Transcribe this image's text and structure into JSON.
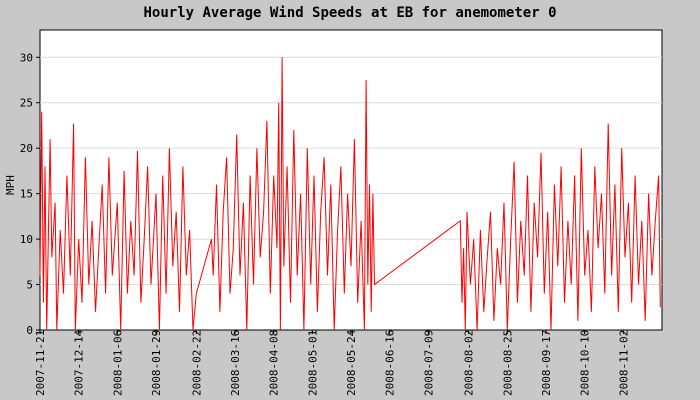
{
  "chart_data": {
    "type": "line",
    "title": "Hourly Average Wind Speeds at EB for anemometer 0",
    "xlabel": "",
    "ylabel": "MPH",
    "x_axis": {
      "kind": "date",
      "min": "2007-11-21",
      "max": "2008-11-25"
    },
    "ylim": [
      0,
      33
    ],
    "yticks": [
      0,
      5,
      10,
      15,
      20,
      25,
      30
    ],
    "xtick_labels": [
      "2007-11-21",
      "2007-12-14",
      "2008-01-06",
      "2008-01-29",
      "2008-02-22",
      "2008-03-16",
      "2008-04-08",
      "2008-05-01",
      "2008-05-24",
      "2008-06-16",
      "2008-07-09",
      "2008-08-02",
      "2008-08-25",
      "2008-09-17",
      "2008-10-10",
      "2008-11-02"
    ],
    "grid": {
      "horizontal": true,
      "vertical": false
    },
    "legend": "none",
    "series": [
      {
        "color": "#ff0000",
        "points": [
          [
            "2007-11-21",
            6
          ],
          [
            "2007-11-22",
            24
          ],
          [
            "2007-11-23",
            3
          ],
          [
            "2007-11-24",
            18
          ],
          [
            "2007-11-25",
            0
          ],
          [
            "2007-11-27",
            21
          ],
          [
            "2007-11-28",
            8
          ],
          [
            "2007-11-30",
            14
          ],
          [
            "2007-12-01",
            0
          ],
          [
            "2007-12-03",
            11
          ],
          [
            "2007-12-05",
            4
          ],
          [
            "2007-12-07",
            17
          ],
          [
            "2007-12-09",
            6
          ],
          [
            "2007-12-11",
            22.7
          ],
          [
            "2007-12-12",
            0
          ],
          [
            "2007-12-14",
            10
          ],
          [
            "2007-12-16",
            3
          ],
          [
            "2007-12-18",
            19
          ],
          [
            "2007-12-20",
            5
          ],
          [
            "2007-12-22",
            12
          ],
          [
            "2007-12-24",
            2
          ],
          [
            "2007-12-26",
            9
          ],
          [
            "2007-12-28",
            16
          ],
          [
            "2007-12-30",
            4
          ],
          [
            "2008-01-01",
            19
          ],
          [
            "2008-01-03",
            6
          ],
          [
            "2008-01-06",
            14
          ],
          [
            "2008-01-08",
            0
          ],
          [
            "2008-01-10",
            17.5
          ],
          [
            "2008-01-12",
            4
          ],
          [
            "2008-01-14",
            12
          ],
          [
            "2008-01-16",
            6
          ],
          [
            "2008-01-18",
            19.7
          ],
          [
            "2008-01-20",
            3
          ],
          [
            "2008-01-22",
            10
          ],
          [
            "2008-01-24",
            18
          ],
          [
            "2008-01-26",
            5
          ],
          [
            "2008-01-29",
            15
          ],
          [
            "2008-01-31",
            0
          ],
          [
            "2008-02-02",
            17
          ],
          [
            "2008-02-04",
            4
          ],
          [
            "2008-02-06",
            20
          ],
          [
            "2008-02-08",
            7
          ],
          [
            "2008-02-10",
            13
          ],
          [
            "2008-02-12",
            2
          ],
          [
            "2008-02-14",
            18
          ],
          [
            "2008-02-16",
            6
          ],
          [
            "2008-02-18",
            11
          ],
          [
            "2008-02-20",
            0
          ],
          [
            "2008-02-22",
            4
          ],
          [
            "2008-03-02",
            10
          ],
          [
            "2008-03-03",
            6
          ],
          [
            "2008-03-05",
            16
          ],
          [
            "2008-03-07",
            2
          ],
          [
            "2008-03-09",
            13
          ],
          [
            "2008-03-11",
            19
          ],
          [
            "2008-03-13",
            4
          ],
          [
            "2008-03-15",
            9
          ],
          [
            "2008-03-17",
            21.5
          ],
          [
            "2008-03-19",
            6
          ],
          [
            "2008-03-21",
            14
          ],
          [
            "2008-03-23",
            0
          ],
          [
            "2008-03-25",
            17
          ],
          [
            "2008-03-27",
            5
          ],
          [
            "2008-03-29",
            20
          ],
          [
            "2008-03-31",
            8
          ],
          [
            "2008-04-02",
            13
          ],
          [
            "2008-04-04",
            23
          ],
          [
            "2008-04-06",
            4
          ],
          [
            "2008-04-08",
            17
          ],
          [
            "2008-04-10",
            9
          ],
          [
            "2008-04-11",
            25
          ],
          [
            "2008-04-12",
            0
          ],
          [
            "2008-04-13",
            30
          ],
          [
            "2008-04-14",
            7
          ],
          [
            "2008-04-16",
            18
          ],
          [
            "2008-04-18",
            3
          ],
          [
            "2008-04-20",
            22
          ],
          [
            "2008-04-22",
            6
          ],
          [
            "2008-04-24",
            15
          ],
          [
            "2008-04-26",
            0
          ],
          [
            "2008-04-28",
            20
          ],
          [
            "2008-04-30",
            5
          ],
          [
            "2008-05-02",
            17
          ],
          [
            "2008-05-04",
            2
          ],
          [
            "2008-05-06",
            13
          ],
          [
            "2008-05-08",
            19
          ],
          [
            "2008-05-10",
            6
          ],
          [
            "2008-05-12",
            16
          ],
          [
            "2008-05-14",
            0
          ],
          [
            "2008-05-16",
            11
          ],
          [
            "2008-05-18",
            18
          ],
          [
            "2008-05-20",
            4
          ],
          [
            "2008-05-22",
            15
          ],
          [
            "2008-05-24",
            7
          ],
          [
            "2008-05-26",
            21
          ],
          [
            "2008-05-28",
            3
          ],
          [
            "2008-05-30",
            12
          ],
          [
            "2008-06-01",
            0
          ],
          [
            "2008-06-02",
            27.5
          ],
          [
            "2008-06-03",
            5
          ],
          [
            "2008-06-04",
            16
          ],
          [
            "2008-06-05",
            2
          ],
          [
            "2008-06-06",
            15
          ],
          [
            "2008-06-07",
            5
          ],
          [
            "2008-07-28",
            12
          ],
          [
            "2008-07-29",
            3
          ],
          [
            "2008-07-30",
            9
          ],
          [
            "2008-07-31",
            0
          ],
          [
            "2008-08-01",
            13
          ],
          [
            "2008-08-03",
            5
          ],
          [
            "2008-08-05",
            10
          ],
          [
            "2008-08-07",
            0
          ],
          [
            "2008-08-09",
            11
          ],
          [
            "2008-08-11",
            2
          ],
          [
            "2008-08-13",
            8
          ],
          [
            "2008-08-15",
            13
          ],
          [
            "2008-08-17",
            1
          ],
          [
            "2008-08-19",
            9
          ],
          [
            "2008-08-21",
            5
          ],
          [
            "2008-08-23",
            14
          ],
          [
            "2008-08-25",
            0
          ],
          [
            "2008-08-27",
            10
          ],
          [
            "2008-08-29",
            18.5
          ],
          [
            "2008-08-31",
            3
          ],
          [
            "2008-09-02",
            12
          ],
          [
            "2008-09-04",
            6
          ],
          [
            "2008-09-06",
            17
          ],
          [
            "2008-09-08",
            2
          ],
          [
            "2008-09-10",
            14
          ],
          [
            "2008-09-12",
            8
          ],
          [
            "2008-09-14",
            19.5
          ],
          [
            "2008-09-16",
            4
          ],
          [
            "2008-09-18",
            13
          ],
          [
            "2008-09-20",
            0
          ],
          [
            "2008-09-22",
            16
          ],
          [
            "2008-09-24",
            7
          ],
          [
            "2008-09-26",
            18
          ],
          [
            "2008-09-28",
            3
          ],
          [
            "2008-09-30",
            12
          ],
          [
            "2008-10-02",
            5
          ],
          [
            "2008-10-04",
            17
          ],
          [
            "2008-10-06",
            1
          ],
          [
            "2008-10-08",
            20
          ],
          [
            "2008-10-10",
            6
          ],
          [
            "2008-10-12",
            11
          ],
          [
            "2008-10-14",
            2
          ],
          [
            "2008-10-16",
            18
          ],
          [
            "2008-10-18",
            9
          ],
          [
            "2008-10-20",
            15
          ],
          [
            "2008-10-22",
            4
          ],
          [
            "2008-10-24",
            22.7
          ],
          [
            "2008-10-26",
            6
          ],
          [
            "2008-10-28",
            16
          ],
          [
            "2008-10-30",
            2
          ],
          [
            "2008-11-01",
            20
          ],
          [
            "2008-11-03",
            8
          ],
          [
            "2008-11-05",
            14
          ],
          [
            "2008-11-07",
            3
          ],
          [
            "2008-11-09",
            17
          ],
          [
            "2008-11-11",
            5
          ],
          [
            "2008-11-13",
            12
          ],
          [
            "2008-11-15",
            1
          ],
          [
            "2008-11-17",
            15
          ],
          [
            "2008-11-19",
            6
          ],
          [
            "2008-11-21",
            12
          ],
          [
            "2008-11-23",
            17
          ],
          [
            "2008-11-24",
            2.5
          ]
        ]
      }
    ]
  }
}
